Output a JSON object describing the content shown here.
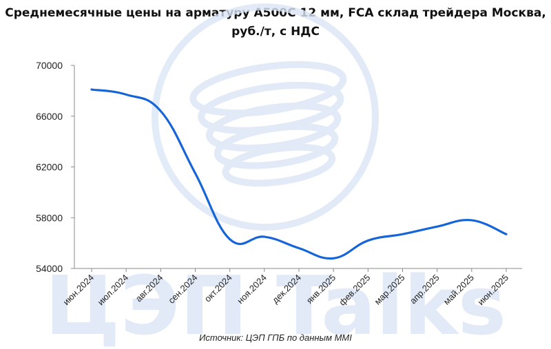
{
  "title_line1": "Среднемесячные цены на арматуру А500С 12 мм, FCA склад трейдера Москва,",
  "title_line2": "руб./т, с НДС",
  "source": "Источник: ЦЭП ГПБ по данным MMI",
  "watermark": "ЦЭП Talks",
  "colors": {
    "line": "#1565d8",
    "watermark": "#dbe6f6",
    "axis": "#888888"
  },
  "chart_data": {
    "type": "line",
    "title": "Среднемесячные цены на арматуру А500С 12 мм, FCA склад трейдера Москва, руб./т, с НДС",
    "categories": [
      "июн.2024",
      "июл.2024",
      "авг.2024",
      "сен.2024",
      "окт.2024",
      "ноя.2024",
      "дек.2024",
      "янв.2025",
      "фев.2025",
      "мар.2025",
      "апр.2025",
      "май.2025",
      "июн.2025"
    ],
    "series": [
      {
        "values": [
          68100,
          67700,
          66400,
          61500,
          56300,
          56500,
          55600,
          54800,
          56200,
          56700,
          57300,
          57800,
          56700
        ]
      }
    ],
    "yticks": [
      "54000",
      "58000",
      "62000",
      "66000",
      "70000"
    ],
    "ylim": [
      54000,
      70000
    ],
    "grid": false
  }
}
